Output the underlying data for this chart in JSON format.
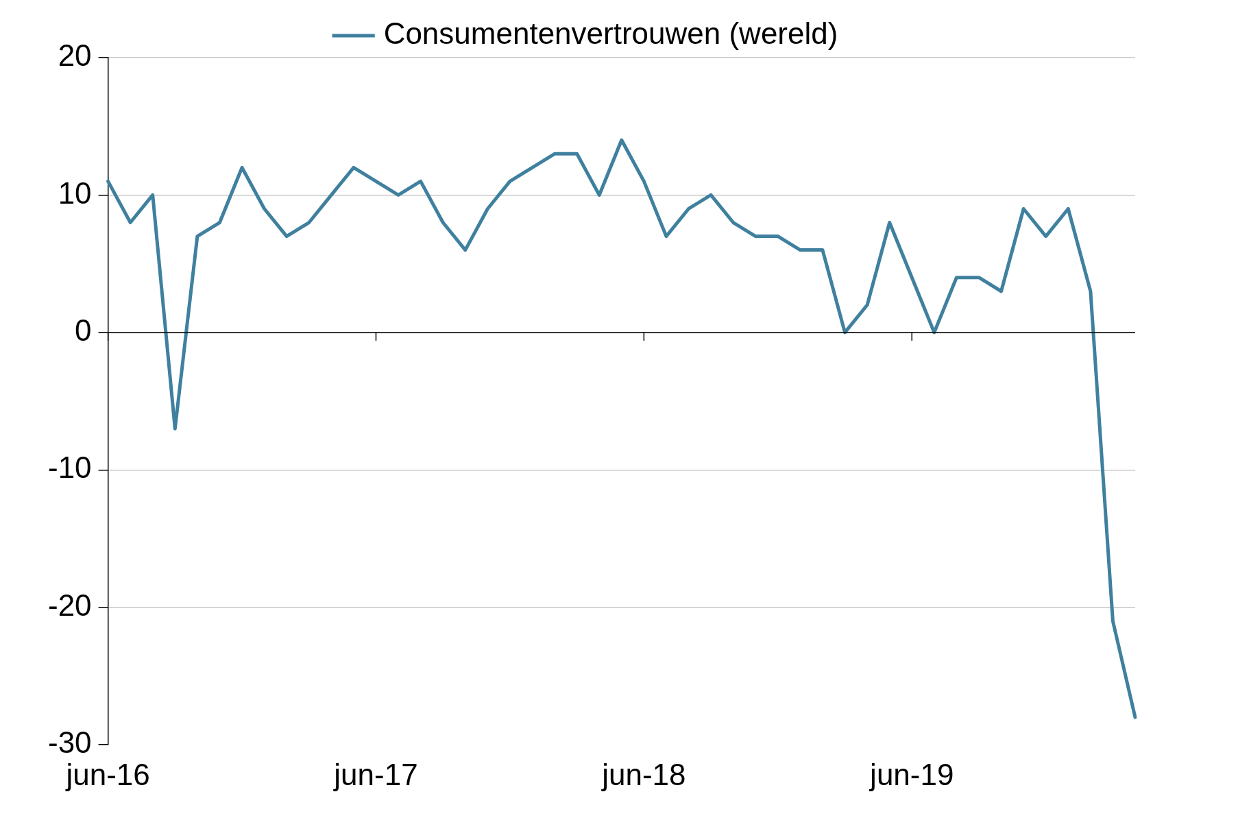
{
  "chart_data": {
    "type": "line",
    "categories": [
      "jun-16",
      null,
      null,
      null,
      null,
      null,
      null,
      null,
      null,
      null,
      null,
      null,
      "jun-17",
      null,
      null,
      null,
      null,
      null,
      null,
      null,
      null,
      null,
      null,
      null,
      "jun-18",
      null,
      null,
      null,
      null,
      null,
      null,
      null,
      null,
      null,
      null,
      null,
      "jun-19",
      null,
      null,
      null,
      null,
      null,
      null,
      null,
      null,
      null,
      null
    ],
    "series": [
      {
        "name": "Consumentenvertrouwen (wereld)",
        "color": "#40809f",
        "values": [
          11,
          8,
          10,
          -7,
          7,
          8,
          12,
          9,
          7,
          8,
          10,
          12,
          11,
          10,
          11,
          8,
          6,
          9,
          11,
          12,
          13,
          13,
          10,
          14,
          11,
          7,
          9,
          10,
          8,
          7,
          7,
          6,
          6,
          0,
          2,
          8,
          4,
          0,
          4,
          4,
          3,
          9,
          7,
          9,
          3,
          -21,
          -28
        ]
      }
    ],
    "ylim": [
      -30,
      20
    ],
    "yticks": [
      -30,
      -20,
      -10,
      0,
      10,
      20
    ],
    "grid": "y",
    "legend": "top",
    "marker": "none",
    "line_style": "solid"
  }
}
